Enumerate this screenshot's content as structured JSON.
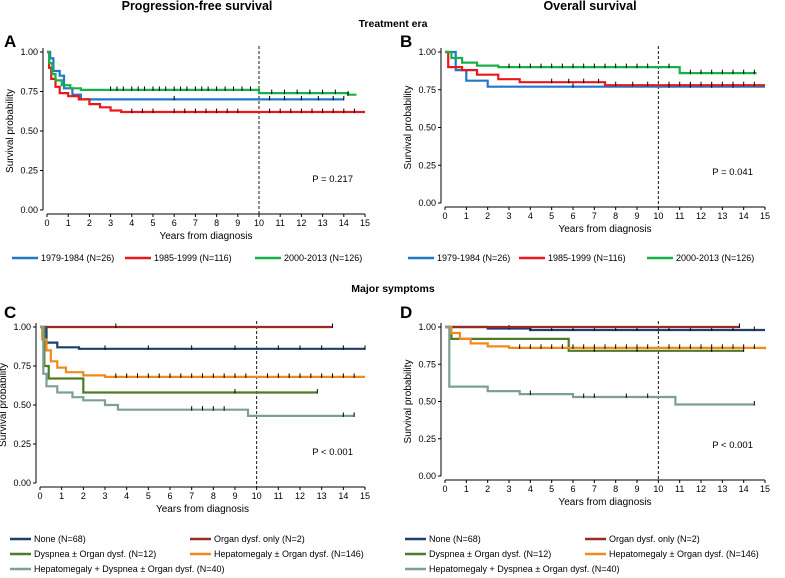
{
  "figure": {
    "column_titles": [
      "Progression-free survival",
      "Overall survival"
    ],
    "section_titles": [
      "Treatment era",
      "Major symptoms"
    ]
  },
  "legends": {
    "era": [
      {
        "label": "1979-1984 (N=26)",
        "color": "#1f78c8"
      },
      {
        "label": "1985-1999 (N=116)",
        "color": "#e8191b"
      },
      {
        "label": "2000-2013 (N=126)",
        "color": "#19b04a"
      }
    ],
    "symptoms": [
      {
        "label": "None (N=68)",
        "color": "#1c3f6e"
      },
      {
        "label": "Organ dysf. only (N=2)",
        "color": "#9b2a23"
      },
      {
        "label": "Dyspnea ± Organ dysf. (N=12)",
        "color": "#4f7a26"
      },
      {
        "label": "Hepatomegaly ± Organ dysf. (N=146)",
        "color": "#f08a1d"
      },
      {
        "label": "Hepatomegaly + Dyspnea ± Organ dysf. (N=40)",
        "color": "#7d9f96"
      }
    ]
  },
  "chart_data": [
    {
      "panel": "A",
      "type": "line",
      "xlabel": "Years from diagnosis",
      "ylabel": "Survival  probability",
      "xlim": [
        0,
        15
      ],
      "ylim": [
        0,
        1
      ],
      "xticks": [
        0,
        1,
        2,
        3,
        4,
        5,
        6,
        7,
        8,
        9,
        10,
        11,
        12,
        13,
        14,
        15
      ],
      "yticks": [
        "0.00",
        "0.25",
        "0.50",
        "0.75",
        "1.00"
      ],
      "reference_line_x": 10,
      "p_value": "P = 0.217",
      "series": [
        {
          "name": "1979-1984 (N=26)",
          "color": "#1f78c8",
          "steps": [
            [
              0,
              1.0
            ],
            [
              0.15,
              0.96
            ],
            [
              0.3,
              0.88
            ],
            [
              0.6,
              0.85
            ],
            [
              0.8,
              0.77
            ],
            [
              1.2,
              0.73
            ],
            [
              1.6,
              0.7
            ],
            [
              14.0,
              0.7
            ]
          ],
          "censor": [
            6.0,
            10.5,
            11.2,
            12.0,
            12.8,
            13.5,
            14.0
          ]
        },
        {
          "name": "1985-1999 (N=116)",
          "color": "#e8191b",
          "steps": [
            [
              0,
              1.0
            ],
            [
              0.1,
              0.9
            ],
            [
              0.2,
              0.83
            ],
            [
              0.4,
              0.78
            ],
            [
              0.6,
              0.74
            ],
            [
              1.0,
              0.72
            ],
            [
              1.5,
              0.7
            ],
            [
              2.0,
              0.67
            ],
            [
              2.5,
              0.65
            ],
            [
              3.0,
              0.63
            ],
            [
              3.5,
              0.62
            ],
            [
              15.0,
              0.62
            ]
          ],
          "censor": [
            4.0,
            4.5,
            5.0,
            6.0,
            6.5,
            7.0,
            7.5,
            8.0,
            8.5,
            9.0,
            10.5,
            11.0,
            11.5,
            12.0,
            12.5,
            13.0,
            13.5,
            14.0,
            14.5
          ]
        },
        {
          "name": "2000-2013 (N=126)",
          "color": "#19b04a",
          "steps": [
            [
              0,
              1.0
            ],
            [
              0.1,
              0.93
            ],
            [
              0.25,
              0.86
            ],
            [
              0.4,
              0.82
            ],
            [
              0.7,
              0.79
            ],
            [
              1.1,
              0.77
            ],
            [
              1.6,
              0.76
            ],
            [
              8.0,
              0.76
            ],
            [
              10.0,
              0.74
            ],
            [
              14.2,
              0.73
            ],
            [
              14.6,
              0.73
            ]
          ],
          "censor": [
            3.0,
            3.3,
            3.6,
            4.0,
            4.3,
            4.6,
            5.0,
            5.3,
            5.6,
            6.0,
            6.3,
            6.6,
            7.0,
            7.3,
            7.6,
            8.0,
            8.4,
            8.8,
            9.2,
            9.6,
            10.6,
            11.2,
            11.8,
            12.4,
            13.0,
            13.6,
            14.2
          ]
        }
      ]
    },
    {
      "panel": "B",
      "type": "line",
      "xlabel": "Years from diagnosis",
      "ylabel": "Survival  probability",
      "xlim": [
        0,
        15
      ],
      "ylim": [
        0,
        1
      ],
      "xticks": [
        0,
        1,
        2,
        3,
        4,
        5,
        6,
        7,
        8,
        9,
        10,
        11,
        12,
        13,
        14,
        15
      ],
      "yticks": [
        "0.00",
        "0.25",
        "0.50",
        "0.75",
        "1.00"
      ],
      "reference_line_x": 10,
      "p_value": "P = 0.041",
      "series": [
        {
          "name": "1979-1984 (N=26)",
          "color": "#1f78c8",
          "steps": [
            [
              0,
              1.0
            ],
            [
              0.5,
              0.88
            ],
            [
              1.0,
              0.81
            ],
            [
              2.0,
              0.77
            ],
            [
              15.0,
              0.77
            ]
          ],
          "censor": [
            6.0,
            10.5,
            11.5,
            12.5,
            13.5
          ]
        },
        {
          "name": "1985-1999 (N=116)",
          "color": "#e8191b",
          "steps": [
            [
              0,
              1.0
            ],
            [
              0.15,
              0.9
            ],
            [
              0.8,
              0.88
            ],
            [
              1.5,
              0.85
            ],
            [
              2.5,
              0.82
            ],
            [
              3.5,
              0.8
            ],
            [
              7.5,
              0.78
            ],
            [
              15.0,
              0.78
            ]
          ],
          "censor": [
            5.0,
            5.8,
            6.5,
            7.2,
            8.0,
            8.8,
            9.5,
            10.5,
            11.0,
            11.5,
            12.0,
            12.5,
            13.0,
            13.5,
            14.0,
            14.5
          ]
        },
        {
          "name": "2000-2013 (N=126)",
          "color": "#19b04a",
          "steps": [
            [
              0,
              1.0
            ],
            [
              0.3,
              0.96
            ],
            [
              0.8,
              0.93
            ],
            [
              1.5,
              0.91
            ],
            [
              2.5,
              0.9
            ],
            [
              11.0,
              0.86
            ],
            [
              14.6,
              0.86
            ]
          ],
          "censor": [
            3.0,
            3.5,
            4.0,
            4.5,
            5.0,
            5.5,
            6.0,
            6.5,
            7.0,
            7.5,
            8.0,
            8.5,
            9.0,
            9.5,
            10.5,
            11.5,
            12.0,
            12.5,
            13.0,
            13.5,
            14.0,
            14.5
          ]
        }
      ]
    },
    {
      "panel": "C",
      "type": "line",
      "xlabel": "Years from diagnosis",
      "ylabel": "Survival  probability",
      "xlim": [
        0,
        15
      ],
      "ylim": [
        0,
        1
      ],
      "xticks": [
        0,
        1,
        2,
        3,
        4,
        5,
        6,
        7,
        8,
        9,
        10,
        11,
        12,
        13,
        14,
        15
      ],
      "yticks": [
        "0.00",
        "0.25",
        "0.50",
        "0.75",
        "1.00"
      ],
      "reference_line_x": 10,
      "p_value": "P < 0.001",
      "series": [
        {
          "name": "None (N=68)",
          "color": "#1c3f6e",
          "steps": [
            [
              0,
              1.0
            ],
            [
              0.3,
              0.9
            ],
            [
              0.8,
              0.87
            ],
            [
              1.8,
              0.86
            ],
            [
              15.0,
              0.86
            ]
          ],
          "censor": [
            3.0,
            5.0,
            7.0,
            9.0,
            11.0,
            12.0,
            13.0,
            14.0,
            15.0
          ]
        },
        {
          "name": "Organ dysf. only (N=2)",
          "color": "#9b2a23",
          "steps": [
            [
              0,
              1.0
            ],
            [
              13.5,
              1.0
            ]
          ],
          "censor": [
            3.5,
            13.5
          ]
        },
        {
          "name": "Dyspnea ± Organ dysf. (N=12)",
          "color": "#4f7a26",
          "steps": [
            [
              0,
              1.0
            ],
            [
              0.2,
              0.75
            ],
            [
              0.4,
              0.67
            ],
            [
              2.0,
              0.58
            ],
            [
              12.8,
              0.58
            ]
          ],
          "censor": [
            9.0,
            12.8
          ]
        },
        {
          "name": "Hepatomegaly ± Organ dysf. (N=146)",
          "color": "#f08a1d",
          "steps": [
            [
              0,
              1.0
            ],
            [
              0.1,
              0.92
            ],
            [
              0.3,
              0.85
            ],
            [
              0.5,
              0.78
            ],
            [
              0.8,
              0.74
            ],
            [
              1.2,
              0.71
            ],
            [
              2.0,
              0.69
            ],
            [
              3.0,
              0.68
            ],
            [
              15.0,
              0.68
            ]
          ],
          "censor": [
            3.5,
            4.0,
            4.5,
            5.0,
            5.5,
            6.0,
            6.5,
            7.0,
            7.5,
            8.0,
            8.5,
            9.0,
            9.5,
            10.5,
            11.0,
            11.5,
            12.0,
            12.5,
            13.0,
            13.5,
            14.0,
            14.5
          ]
        },
        {
          "name": "Hepatomegaly + Dyspnea ± Organ dysf. (N=40)",
          "color": "#7d9f96",
          "steps": [
            [
              0,
              1.0
            ],
            [
              0.15,
              0.7
            ],
            [
              0.3,
              0.62
            ],
            [
              0.8,
              0.58
            ],
            [
              1.5,
              0.55
            ],
            [
              2.0,
              0.53
            ],
            [
              3.0,
              0.5
            ],
            [
              3.6,
              0.47
            ],
            [
              9.6,
              0.43
            ],
            [
              14.5,
              0.43
            ]
          ],
          "censor": [
            7.0,
            7.5,
            8.0,
            8.5,
            14.0,
            14.5
          ]
        }
      ]
    },
    {
      "panel": "D",
      "type": "line",
      "xlabel": "Years from diagnosis",
      "ylabel": "Survival  probability",
      "xlim": [
        0,
        15
      ],
      "ylim": [
        0,
        1
      ],
      "xticks": [
        0,
        1,
        2,
        3,
        4,
        5,
        6,
        7,
        8,
        9,
        10,
        11,
        12,
        13,
        14,
        15
      ],
      "yticks": [
        "0.00",
        "0.25",
        "0.50",
        "0.75",
        "1.00"
      ],
      "reference_line_x": 10,
      "p_value": "P < 0.001",
      "series": [
        {
          "name": "None (N=68)",
          "color": "#1c3f6e",
          "steps": [
            [
              0,
              1.0
            ],
            [
              2.0,
              0.99
            ],
            [
              4.0,
              0.98
            ],
            [
              15.0,
              0.98
            ]
          ],
          "censor": [
            3.0,
            4.0,
            5.0,
            6.0,
            7.0,
            8.0,
            9.0,
            10.5,
            11.5,
            12.5,
            13.5,
            14.5
          ]
        },
        {
          "name": "Organ dysf. only (N=2)",
          "color": "#9b2a23",
          "steps": [
            [
              0,
              1.0
            ],
            [
              13.8,
              1.0
            ]
          ],
          "censor": [
            13.8
          ]
        },
        {
          "name": "Dyspnea ± Organ dysf. (N=12)",
          "color": "#4f7a26",
          "steps": [
            [
              0,
              1.0
            ],
            [
              0.3,
              0.92
            ],
            [
              5.8,
              0.84
            ],
            [
              14.0,
              0.84
            ]
          ],
          "censor": [
            7.0,
            9.0,
            12.5,
            14.0
          ]
        },
        {
          "name": "Hepatomegaly ± Organ dysf. (N=146)",
          "color": "#f08a1d",
          "steps": [
            [
              0,
              1.0
            ],
            [
              0.3,
              0.96
            ],
            [
              0.7,
              0.92
            ],
            [
              1.2,
              0.89
            ],
            [
              2.0,
              0.87
            ],
            [
              3.0,
              0.86
            ],
            [
              15.0,
              0.85
            ]
          ],
          "censor": [
            3.5,
            4.0,
            4.5,
            5.0,
            5.5,
            6.0,
            6.5,
            7.0,
            7.5,
            8.0,
            8.5,
            9.0,
            9.5,
            10.5,
            11.0,
            11.5,
            12.0,
            12.5,
            13.0,
            13.5,
            14.0,
            14.5
          ]
        },
        {
          "name": "Hepatomegaly + Dyspnea ± Organ dysf. (N=40)",
          "color": "#7d9f96",
          "steps": [
            [
              0,
              1.0
            ],
            [
              0.2,
              0.6
            ],
            [
              2.0,
              0.57
            ],
            [
              3.5,
              0.55
            ],
            [
              6.0,
              0.53
            ],
            [
              10.8,
              0.48
            ],
            [
              14.5,
              0.48
            ]
          ],
          "censor": [
            4.0,
            6.5,
            7.0,
            8.5,
            9.5,
            14.5
          ]
        }
      ]
    }
  ]
}
